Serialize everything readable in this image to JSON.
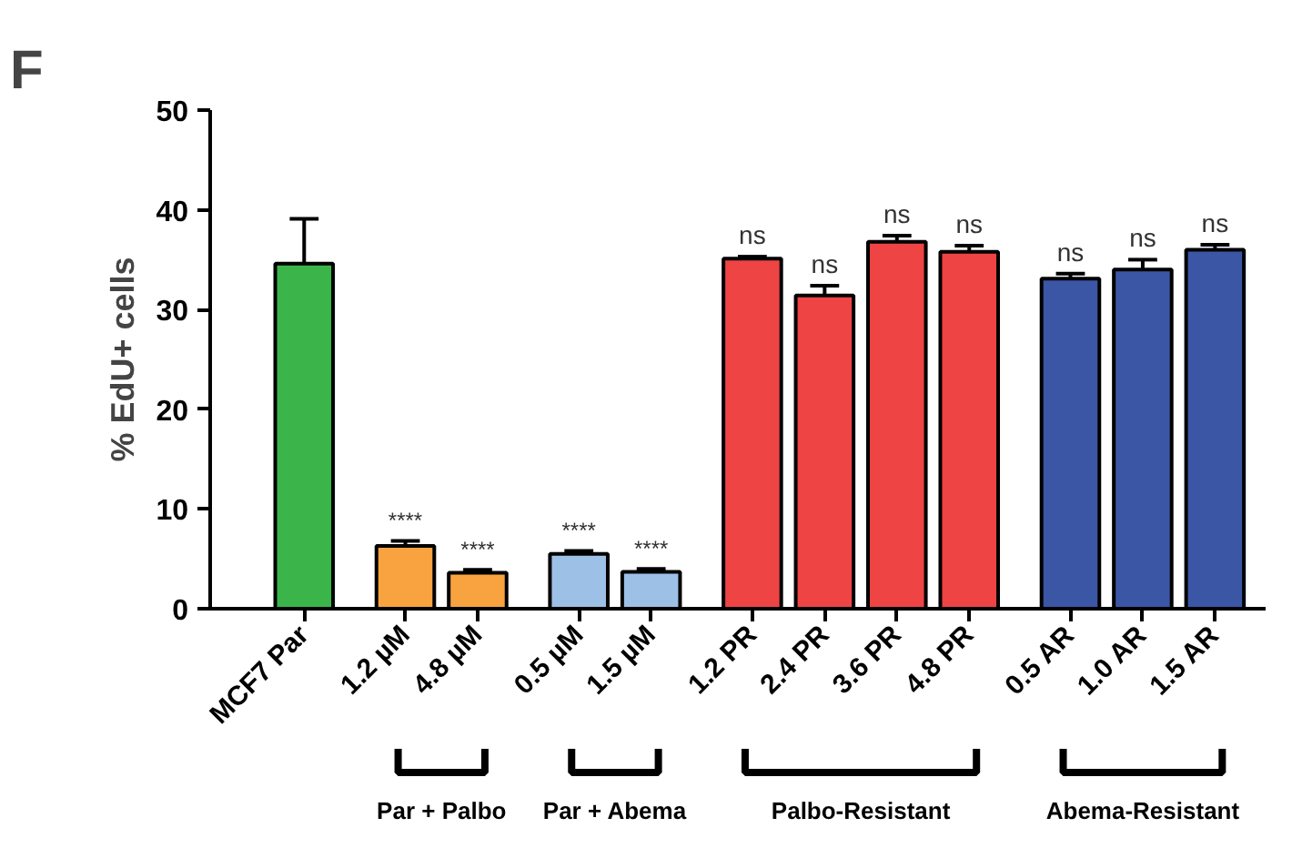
{
  "chart_data": {
    "type": "bar",
    "title": "F",
    "ylabel": "% EdU+ cells",
    "categories": [
      "MCF7 Par",
      "1.2 µM",
      "4.8 µM",
      "0.5 µM",
      "1.5 µM",
      "1.2 PR",
      "2.4 PR",
      "3.6 PR",
      "4.8 PR",
      "0.5 AR",
      "1.0 AR",
      "1.5 AR"
    ],
    "values": [
      34.6,
      6.3,
      3.6,
      5.5,
      3.7,
      35.1,
      31.4,
      36.8,
      35.8,
      33.1,
      34.0,
      36.0
    ],
    "colors": [
      "#3bb54a",
      "#f8a33f",
      "#f8a33f",
      "#9dc0e6",
      "#9dc0e6",
      "#ee4443",
      "#ee4443",
      "#ee4443",
      "#ee4443",
      "#3b56a5",
      "#3b56a5",
      "#3b56a5"
    ],
    "errors": [
      [
        34.6,
        39.1
      ],
      [
        6.3,
        6.8
      ],
      [
        3.6,
        3.9
      ],
      [
        5.5,
        5.8
      ],
      [
        3.7,
        4.0
      ],
      [
        35.1,
        35.3
      ],
      [
        31.4,
        32.4
      ],
      [
        36.8,
        37.4
      ],
      [
        35.8,
        36.4
      ],
      [
        33.1,
        33.6
      ],
      [
        34.0,
        35.0
      ],
      [
        36.0,
        36.5
      ]
    ],
    "value_labels": [
      null,
      "****",
      "****",
      "****",
      "****",
      "ns",
      "ns",
      "ns",
      "ns",
      "ns",
      "ns",
      "ns"
    ],
    "annotations": [
      "Par + Palbo",
      "Par + Abema",
      "Palbo-Resistant",
      "Abema-Resistant"
    ],
    "ylim": [
      0,
      50
    ],
    "yticks": [
      0,
      10,
      20,
      30,
      40,
      50
    ],
    "grid": false
  }
}
